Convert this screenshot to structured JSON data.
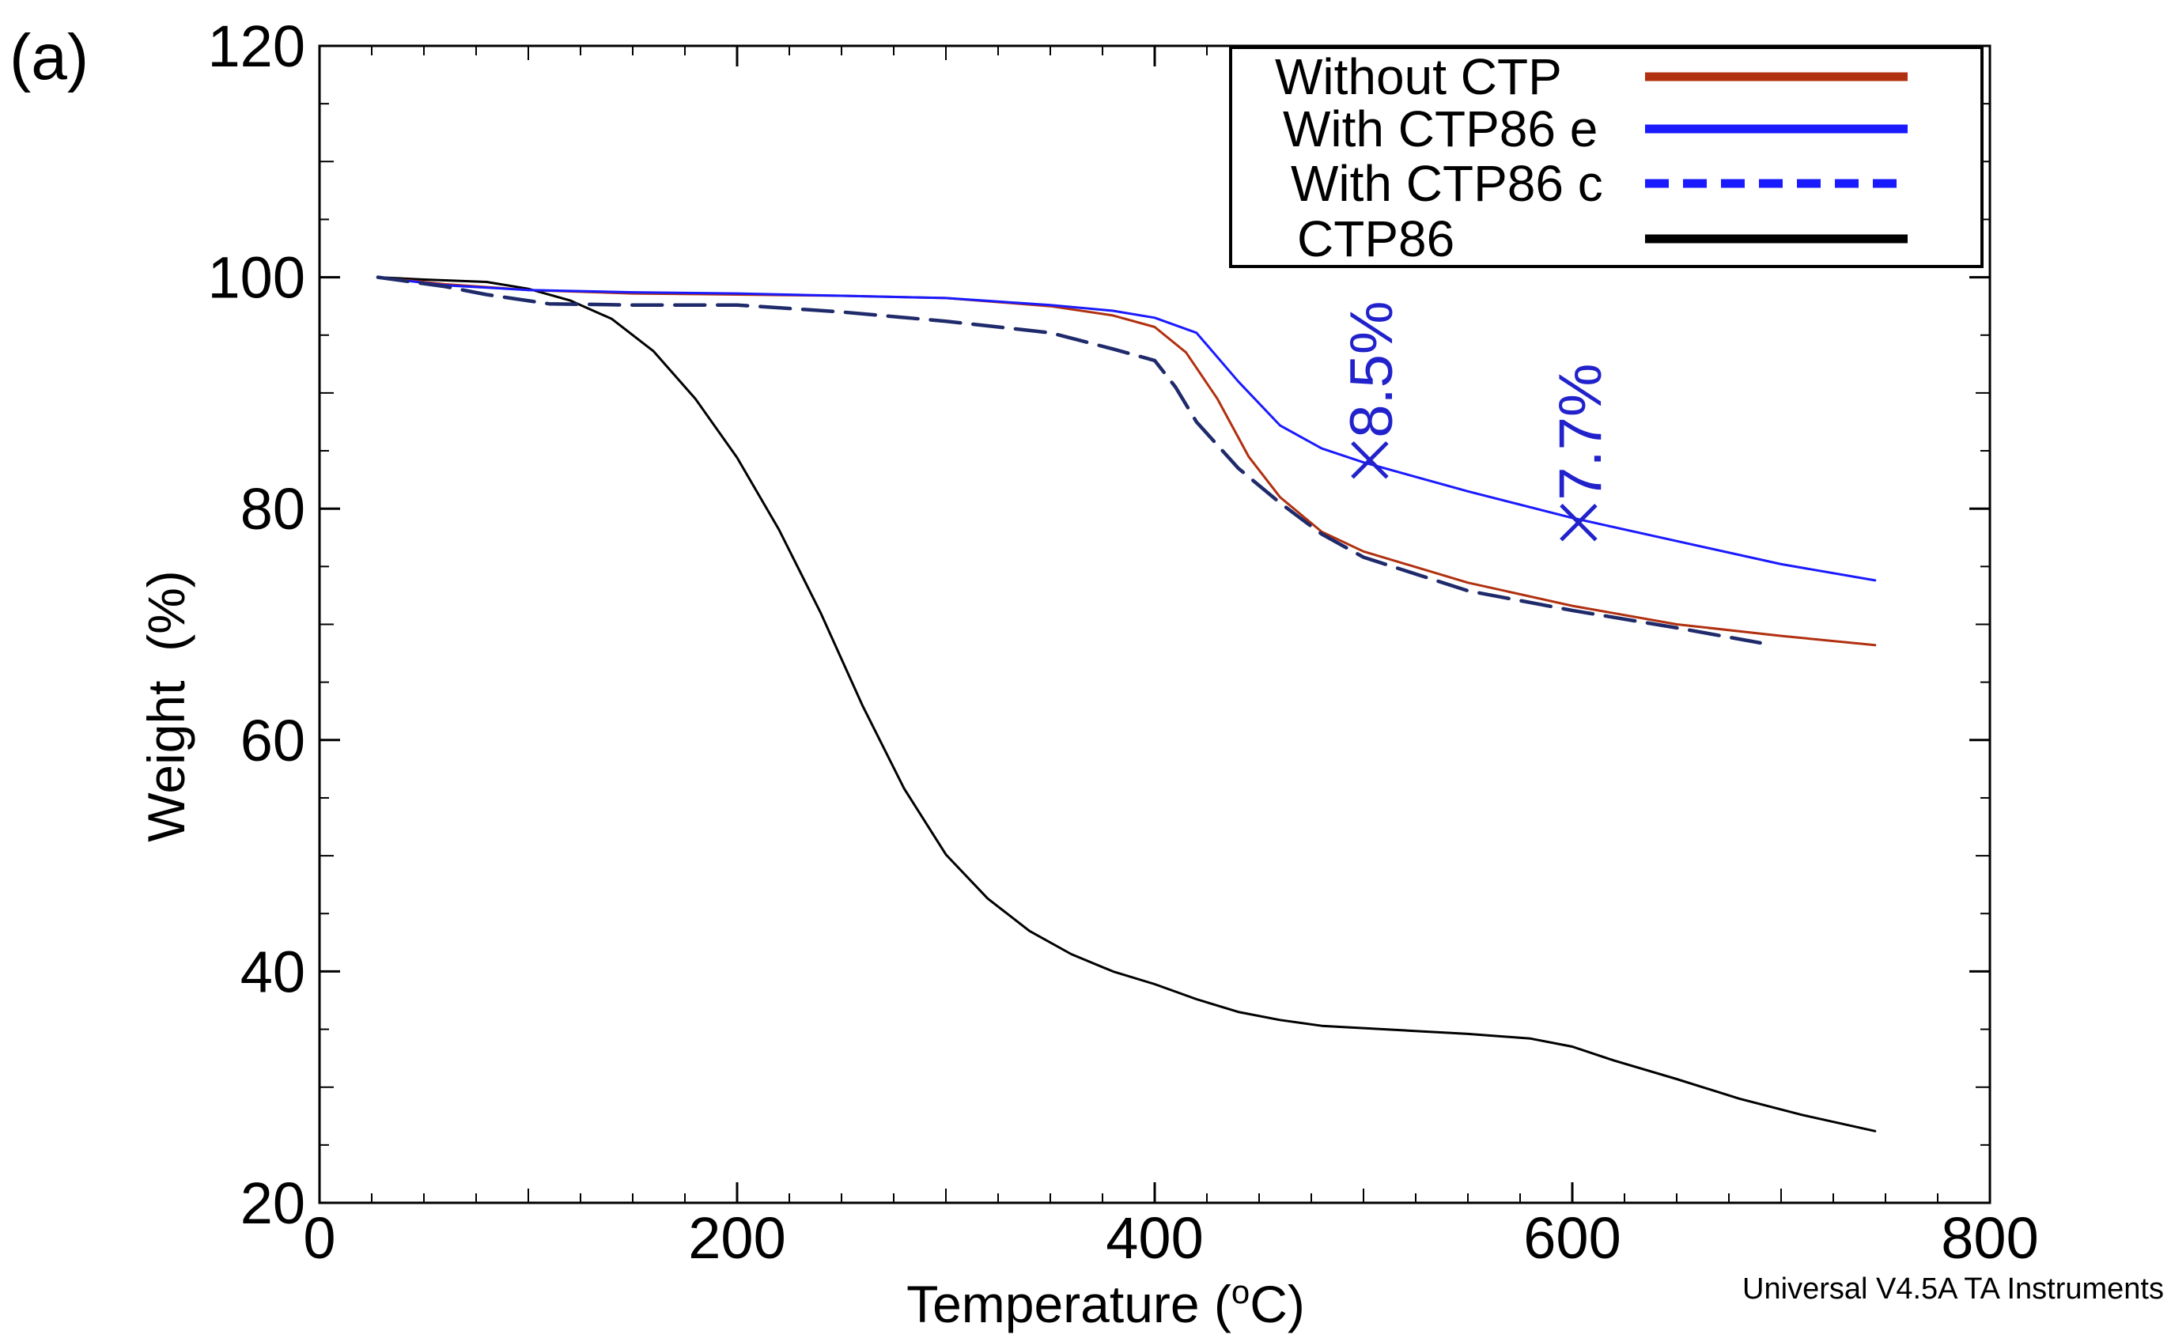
{
  "panel_label": "(a)",
  "footer_note": "Universal V4.5A TA Instruments",
  "colors": {
    "without_ctp": "#b03010",
    "with_ctp86_e": "#1a1aff",
    "with_ctp86_c": "#1f2a6b",
    "with_ctp86_c_legend": "#1a1aff",
    "ctp86": "#000000",
    "annotation": "#2222cc"
  },
  "chart_data": {
    "type": "line",
    "title": "",
    "xlabel": "Temperature (oC)",
    "xlabel_main": "Temperature (",
    "xlabel_sup": "o",
    "xlabel_tail": "C)",
    "ylabel": "Weight  (%)",
    "xlim": [
      0,
      800
    ],
    "ylim": [
      20,
      120
    ],
    "xticks": [
      0,
      200,
      400,
      600,
      800
    ],
    "xtick_labels": [
      "0",
      "200",
      "400",
      "600",
      "800"
    ],
    "yticks": [
      20,
      40,
      60,
      80,
      100,
      120
    ],
    "ytick_labels": [
      "20",
      "40",
      "60",
      "80",
      "100",
      "120"
    ],
    "grid": false,
    "legend_position": "top-right",
    "series": [
      {
        "name": "Without CTP",
        "style": "solid",
        "x": [
          28,
          60,
          100,
          150,
          200,
          250,
          300,
          350,
          380,
          400,
          415,
          430,
          445,
          460,
          480,
          500,
          550,
          600,
          650,
          700,
          745
        ],
        "y": [
          100,
          99.4,
          98.9,
          98.6,
          98.5,
          98.4,
          98.2,
          97.5,
          96.7,
          95.7,
          93.5,
          89.5,
          84.5,
          81,
          78,
          76.3,
          73.6,
          71.6,
          70,
          69,
          68.2
        ]
      },
      {
        "name": "With CTP86 e",
        "style": "solid",
        "x": [
          28,
          60,
          100,
          150,
          200,
          250,
          300,
          350,
          380,
          400,
          420,
          440,
          460,
          480,
          500,
          550,
          600,
          650,
          700,
          745
        ],
        "y": [
          100,
          99.3,
          98.9,
          98.7,
          98.6,
          98.4,
          98.2,
          97.6,
          97.1,
          96.5,
          95.2,
          91,
          87.2,
          85.2,
          84,
          81.5,
          79.2,
          77.2,
          75.2,
          73.8
        ]
      },
      {
        "name": "With CTP86 c",
        "style": "dashed",
        "x": [
          28,
          60,
          80,
          110,
          150,
          200,
          250,
          300,
          350,
          380,
          400,
          410,
          420,
          440,
          460,
          480,
          500,
          550,
          600,
          650,
          690
        ],
        "y": [
          100,
          99.2,
          98.5,
          97.7,
          97.6,
          97.6,
          97,
          96.2,
          95.2,
          93.8,
          92.8,
          90.5,
          87.5,
          83.5,
          80.5,
          77.8,
          75.8,
          72.9,
          71.2,
          69.7,
          68.4
        ]
      },
      {
        "name": "CTP86",
        "style": "solid",
        "x": [
          28,
          50,
          80,
          100,
          120,
          140,
          160,
          180,
          200,
          220,
          240,
          260,
          280,
          300,
          320,
          340,
          360,
          380,
          400,
          420,
          440,
          460,
          480,
          500,
          520,
          550,
          580,
          600,
          620,
          650,
          680,
          710,
          745
        ],
        "y": [
          100,
          99.8,
          99.6,
          99,
          98,
          96.4,
          93.6,
          89.5,
          84.4,
          78.2,
          71,
          63,
          55.8,
          50.1,
          46.3,
          43.5,
          41.5,
          40,
          38.9,
          37.6,
          36.5,
          35.8,
          35.3,
          35.1,
          34.9,
          34.6,
          34.2,
          33.5,
          32.3,
          30.7,
          29,
          27.6,
          26.2
        ]
      }
    ],
    "annotations": [
      {
        "label": "8.5%",
        "x": 503,
        "y": 84.2,
        "marker": "X"
      },
      {
        "label": "7.7%",
        "x": 603,
        "y": 78.8,
        "marker": "X"
      }
    ]
  }
}
